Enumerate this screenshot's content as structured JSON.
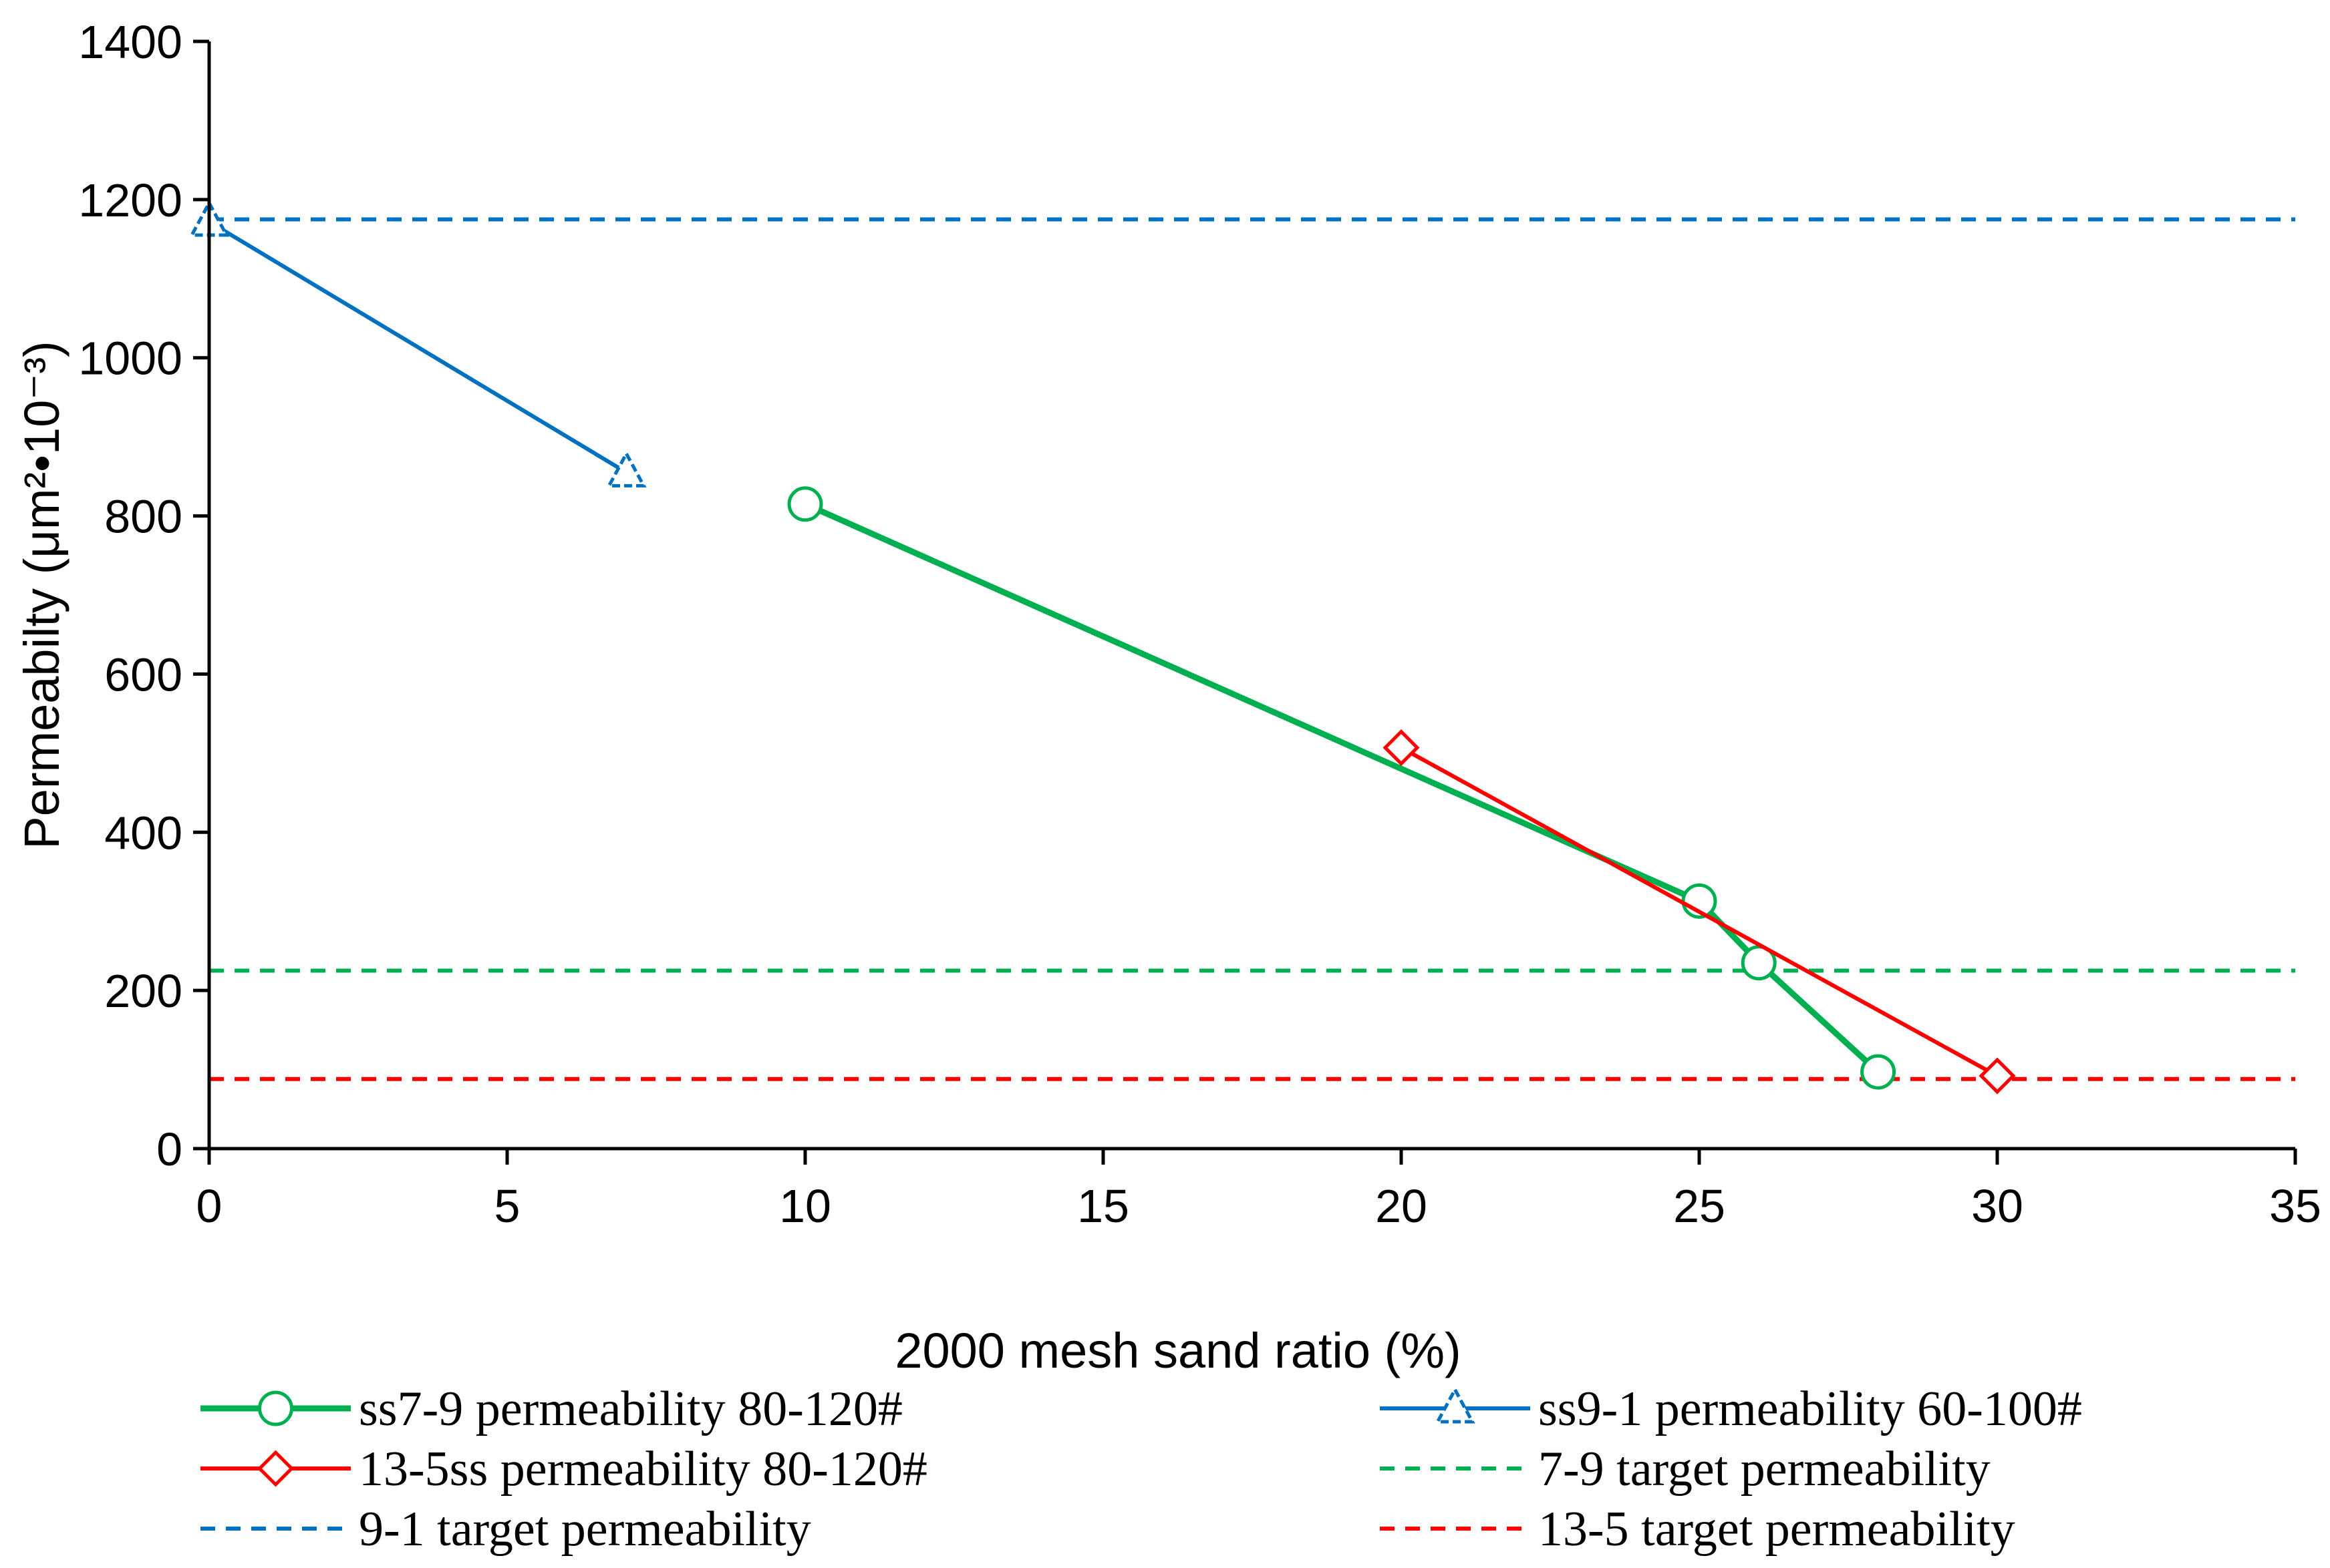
{
  "chart_data": {
    "type": "line",
    "xlabel": "2000 mesh sand ratio (%)",
    "ylabel": "Permeabilty (μm²•10⁻³)",
    "xlim": [
      0,
      35
    ],
    "ylim": [
      0,
      1400
    ],
    "x_ticks": [
      0,
      5,
      10,
      15,
      20,
      25,
      30,
      35
    ],
    "y_ticks": [
      0,
      200,
      400,
      600,
      800,
      1000,
      1200,
      1400
    ],
    "grid": false,
    "series": [
      {
        "name": "ss7-9 permeability 80-120#",
        "color": "#00b050",
        "marker": "circle",
        "x": [
          10,
          25,
          26,
          28
        ],
        "y": [
          815,
          313,
          235,
          97
        ]
      },
      {
        "name": "ss9-1 permeability 60-100#",
        "color": "#0070c0",
        "marker": "triangle",
        "x": [
          0,
          7
        ],
        "y": [
          1172,
          855
        ]
      },
      {
        "name": "13-5ss permeability 80-120#",
        "color": "#ff0000",
        "marker": "diamond",
        "x": [
          20,
          30
        ],
        "y": [
          507,
          92
        ]
      }
    ],
    "reference_lines": [
      {
        "name": "7-9 target permeability",
        "color": "#00b050",
        "y": 225
      },
      {
        "name": "9-1 target permeability",
        "color": "#0070c0",
        "y": 1175
      },
      {
        "name": "13-5 target permeability",
        "color": "#ff0000",
        "y": 88
      }
    ],
    "legend_order": [
      "ss7-9 permeability 80-120#",
      "ss9-1 permeability 60-100#",
      "13-5ss permeability 80-120#",
      "7-9 target permeability",
      "9-1 target permeability",
      "13-5 target permeability"
    ]
  }
}
